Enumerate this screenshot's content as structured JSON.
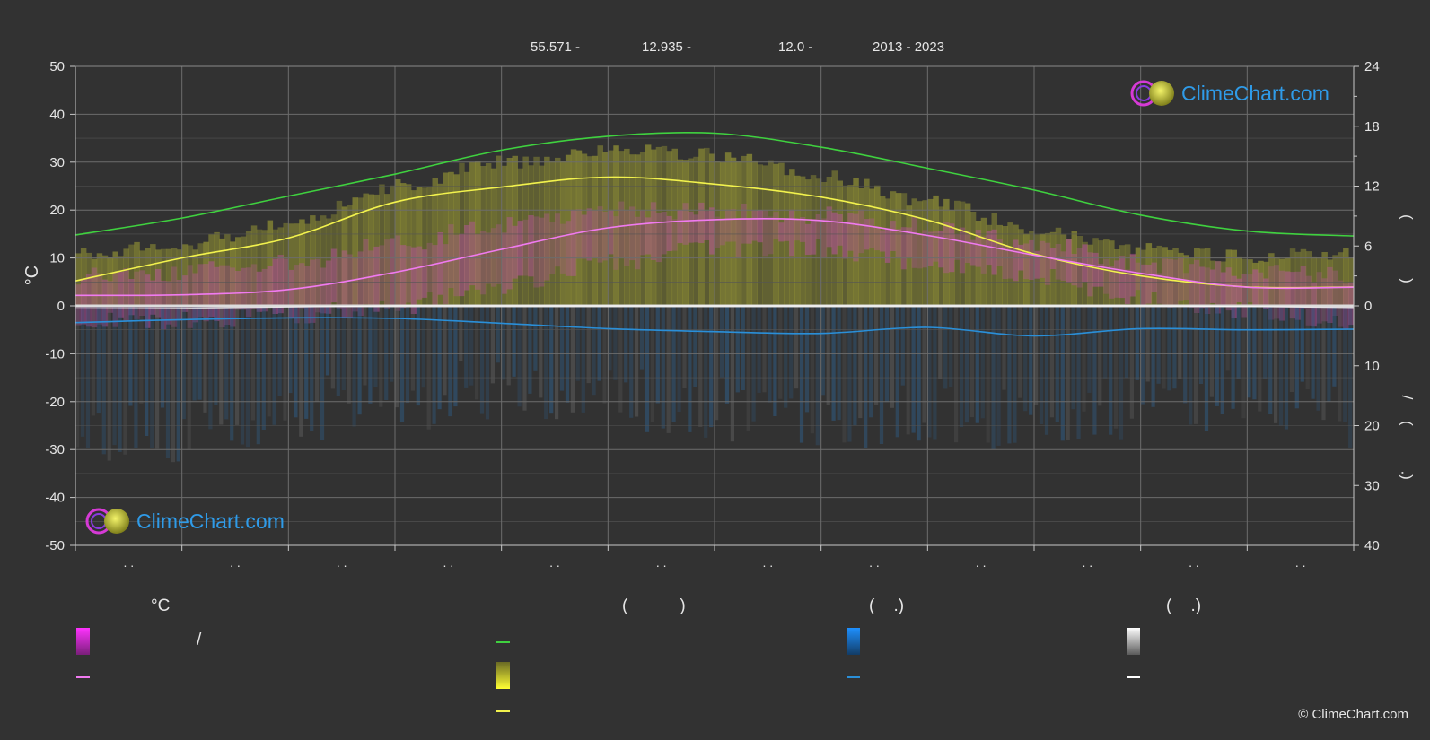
{
  "header": {
    "lat": "55.571 -",
    "lon": "12.935 -",
    "elev": "12.0 -",
    "period": "2013 - 2023"
  },
  "logo_text": "ClimeChart.com",
  "copyright": "© ClimeChart.com",
  "legend": {
    "temp_header": "°C",
    "sun_header": "(           )",
    "rain_header": "(    .)",
    "snow_header": "(    .)",
    "slash": "/"
  },
  "colors": {
    "background": "#323232",
    "daylight": "#3fd13f",
    "sunshine": "#f2f24d",
    "temperature": "#f07af0",
    "rain": "#2a8fd8",
    "snow_line": "#ffffff"
  },
  "chart_data": {
    "type": "area",
    "x": [
      0,
      1,
      2,
      3,
      4,
      5,
      6,
      7,
      8,
      9,
      10,
      11,
      12
    ],
    "xlabel": "",
    "y_left": {
      "label": "°C",
      "range": [
        -50,
        50
      ],
      "ticks": [
        50,
        40,
        30,
        20,
        10,
        0,
        -10,
        -20,
        -30,
        -40,
        -50
      ]
    },
    "y_right_top": {
      "range": [
        0,
        24
      ],
      "ticks": [
        24,
        18,
        12,
        6,
        0
      ]
    },
    "y_right_bottom": {
      "range": [
        0,
        40
      ],
      "ticks": [
        0,
        10,
        20,
        30,
        40
      ]
    },
    "month_tick_labels": [
      ". .",
      ". .",
      ". .",
      ". .",
      ". .",
      ". .",
      ". .",
      ". .",
      ". .",
      ". .",
      ". .",
      ". ."
    ],
    "right_axis_label_glyphs": [
      "(",
      ")",
      "/",
      "(",
      "·",
      ")"
    ],
    "series": [
      {
        "key": "daylight",
        "unit": "h",
        "axis": "right_top",
        "values": [
          7.1,
          8.8,
          11.0,
          13.2,
          15.6,
          17.0,
          17.3,
          15.9,
          13.8,
          11.6,
          9.1,
          7.5,
          7.0
        ]
      },
      {
        "key": "sunshine_line",
        "unit": "h",
        "axis": "right_top",
        "values": [
          2.5,
          4.8,
          6.8,
          10.4,
          11.9,
          12.9,
          12.2,
          10.9,
          8.6,
          5.2,
          3.0,
          1.9,
          1.9
        ]
      },
      {
        "key": "temp_mean",
        "unit": "°C",
        "axis": "left",
        "values": [
          2.2,
          2.3,
          3.4,
          7.0,
          11.8,
          16.3,
          18.0,
          17.8,
          14.7,
          10.6,
          6.8,
          3.9,
          3.9
        ]
      },
      {
        "key": "rain_mean",
        "unit": "mm/day",
        "axis": "right_bottom",
        "values": [
          2.8,
          2.3,
          2.0,
          2.1,
          2.9,
          3.8,
          4.3,
          4.6,
          3.6,
          5.0,
          3.8,
          4.0,
          3.9
        ]
      },
      {
        "key": "snow_mean",
        "unit": "cm",
        "axis": "right_bottom",
        "values": [
          0.5,
          0.4,
          0.2,
          0,
          0,
          0,
          0,
          0,
          0,
          0,
          0,
          0.1,
          0.3
        ]
      },
      {
        "key": "sunshine_band_top",
        "unit": "°C",
        "axis": "left",
        "values": [
          11,
          13,
          17,
          25,
          30,
          32.5,
          31.5,
          27,
          22,
          16,
          12,
          10.5,
          11
        ]
      },
      {
        "key": "temp_band_top",
        "unit": "°C",
        "axis": "left",
        "values": [
          6,
          7,
          9,
          13,
          17,
          20,
          20,
          19,
          17,
          13,
          9,
          7,
          6
        ]
      },
      {
        "key": "temp_band_bottom",
        "unit": "°C",
        "axis": "left",
        "values": [
          -3,
          -3,
          -2,
          0,
          4,
          9,
          12,
          12,
          9,
          6,
          2,
          -1,
          -3
        ]
      },
      {
        "key": "rain_band_bottom",
        "unit": "°C-axis",
        "axis": "left",
        "values": [
          -28,
          -24,
          -20,
          -18,
          -16,
          -18,
          -20,
          -22,
          -20,
          -22,
          -20,
          -18,
          -22
        ]
      }
    ],
    "grid": true,
    "legend": "bottom"
  }
}
